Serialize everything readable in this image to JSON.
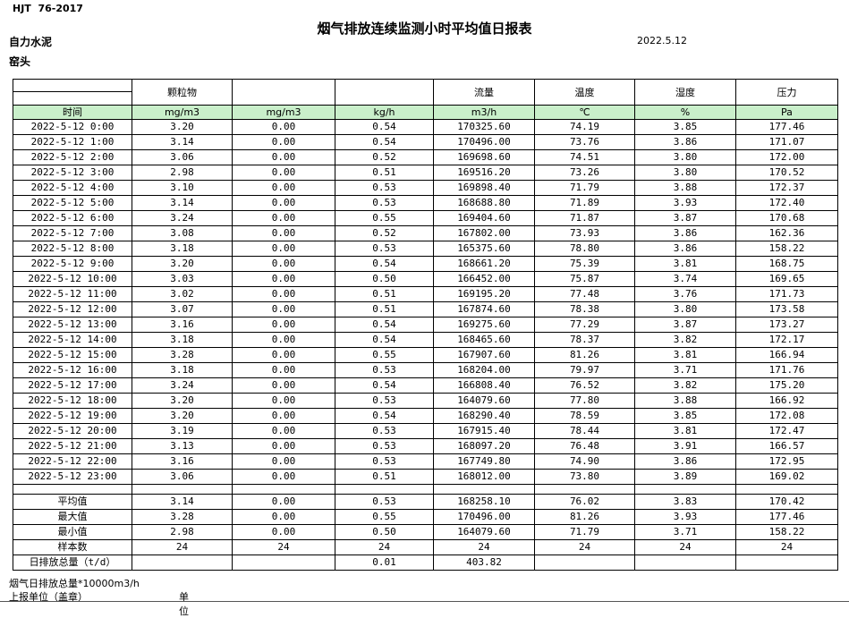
{
  "header": {
    "standard": "HJT  76-2017",
    "title": "烟气排放连续监测小时平均值日报表",
    "company": "自力水泥",
    "location": "窑头",
    "date": "2022.5.12"
  },
  "table": {
    "group_headers": [
      "",
      "颗粒物",
      "",
      "",
      "流量",
      "温度",
      "湿度",
      "压力"
    ],
    "unit_row": [
      "时间",
      "mg/m3",
      "mg/m3",
      "kg/h",
      "m3/h",
      "℃",
      "%",
      "Pa"
    ],
    "rows": [
      [
        "2022-5-12 0:00",
        "3.20",
        "0.00",
        "0.54",
        "170325.60",
        "74.19",
        "3.85",
        "177.46"
      ],
      [
        "2022-5-12 1:00",
        "3.14",
        "0.00",
        "0.54",
        "170496.00",
        "73.76",
        "3.86",
        "171.07"
      ],
      [
        "2022-5-12 2:00",
        "3.06",
        "0.00",
        "0.52",
        "169698.60",
        "74.51",
        "3.80",
        "172.00"
      ],
      [
        "2022-5-12 3:00",
        "2.98",
        "0.00",
        "0.51",
        "169516.20",
        "73.26",
        "3.80",
        "170.52"
      ],
      [
        "2022-5-12 4:00",
        "3.10",
        "0.00",
        "0.53",
        "169898.40",
        "71.79",
        "3.88",
        "172.37"
      ],
      [
        "2022-5-12 5:00",
        "3.14",
        "0.00",
        "0.53",
        "168688.80",
        "71.89",
        "3.93",
        "172.40"
      ],
      [
        "2022-5-12 6:00",
        "3.24",
        "0.00",
        "0.55",
        "169404.60",
        "71.87",
        "3.87",
        "170.68"
      ],
      [
        "2022-5-12 7:00",
        "3.08",
        "0.00",
        "0.52",
        "167802.00",
        "73.93",
        "3.86",
        "162.36"
      ],
      [
        "2022-5-12 8:00",
        "3.18",
        "0.00",
        "0.53",
        "165375.60",
        "78.80",
        "3.86",
        "158.22"
      ],
      [
        "2022-5-12 9:00",
        "3.20",
        "0.00",
        "0.54",
        "168661.20",
        "75.39",
        "3.81",
        "168.75"
      ],
      [
        "2022-5-12 10:00",
        "3.03",
        "0.00",
        "0.50",
        "166452.00",
        "75.87",
        "3.74",
        "169.65"
      ],
      [
        "2022-5-12 11:00",
        "3.02",
        "0.00",
        "0.51",
        "169195.20",
        "77.48",
        "3.76",
        "171.73"
      ],
      [
        "2022-5-12 12:00",
        "3.07",
        "0.00",
        "0.51",
        "167874.60",
        "78.38",
        "3.80",
        "173.58"
      ],
      [
        "2022-5-12 13:00",
        "3.16",
        "0.00",
        "0.54",
        "169275.60",
        "77.29",
        "3.87",
        "173.27"
      ],
      [
        "2022-5-12 14:00",
        "3.18",
        "0.00",
        "0.54",
        "168465.60",
        "78.37",
        "3.82",
        "172.17"
      ],
      [
        "2022-5-12 15:00",
        "3.28",
        "0.00",
        "0.55",
        "167907.60",
        "81.26",
        "3.81",
        "166.94"
      ],
      [
        "2022-5-12 16:00",
        "3.18",
        "0.00",
        "0.53",
        "168204.00",
        "79.97",
        "3.71",
        "171.76"
      ],
      [
        "2022-5-12 17:00",
        "3.24",
        "0.00",
        "0.54",
        "166808.40",
        "76.52",
        "3.82",
        "175.20"
      ],
      [
        "2022-5-12 18:00",
        "3.20",
        "0.00",
        "0.53",
        "164079.60",
        "77.80",
        "3.88",
        "166.92"
      ],
      [
        "2022-5-12 19:00",
        "3.20",
        "0.00",
        "0.54",
        "168290.40",
        "78.59",
        "3.85",
        "172.08"
      ],
      [
        "2022-5-12 20:00",
        "3.19",
        "0.00",
        "0.53",
        "167915.40",
        "78.44",
        "3.81",
        "172.47"
      ],
      [
        "2022-5-12 21:00",
        "3.13",
        "0.00",
        "0.53",
        "168097.20",
        "76.48",
        "3.91",
        "166.57"
      ],
      [
        "2022-5-12 22:00",
        "3.16",
        "0.00",
        "0.53",
        "167749.80",
        "74.90",
        "3.86",
        "172.95"
      ],
      [
        "2022-5-12 23:00",
        "3.06",
        "0.00",
        "0.51",
        "168012.00",
        "73.80",
        "3.89",
        "169.02"
      ]
    ],
    "summary": [
      [
        "平均值",
        "3.14",
        "0.00",
        "0.53",
        "168258.10",
        "76.02",
        "3.83",
        "170.42"
      ],
      [
        "最大值",
        "3.28",
        "0.00",
        "0.55",
        "170496.00",
        "81.26",
        "3.93",
        "177.46"
      ],
      [
        "最小值",
        "2.98",
        "0.00",
        "0.50",
        "164079.60",
        "71.79",
        "3.71",
        "158.22"
      ],
      [
        "样本数",
        "24",
        "24",
        "24",
        "24",
        "24",
        "24",
        "24"
      ],
      [
        "日排放总量（t/d）",
        "",
        "",
        "0.01",
        "403.82",
        "",
        "",
        ""
      ]
    ]
  },
  "footer": {
    "note": "烟气日排放总量*10000m3/h",
    "report_unit": "上报单位（盖章）",
    "unit_label": "单位"
  },
  "colors": {
    "header_green": "#c9efca"
  }
}
